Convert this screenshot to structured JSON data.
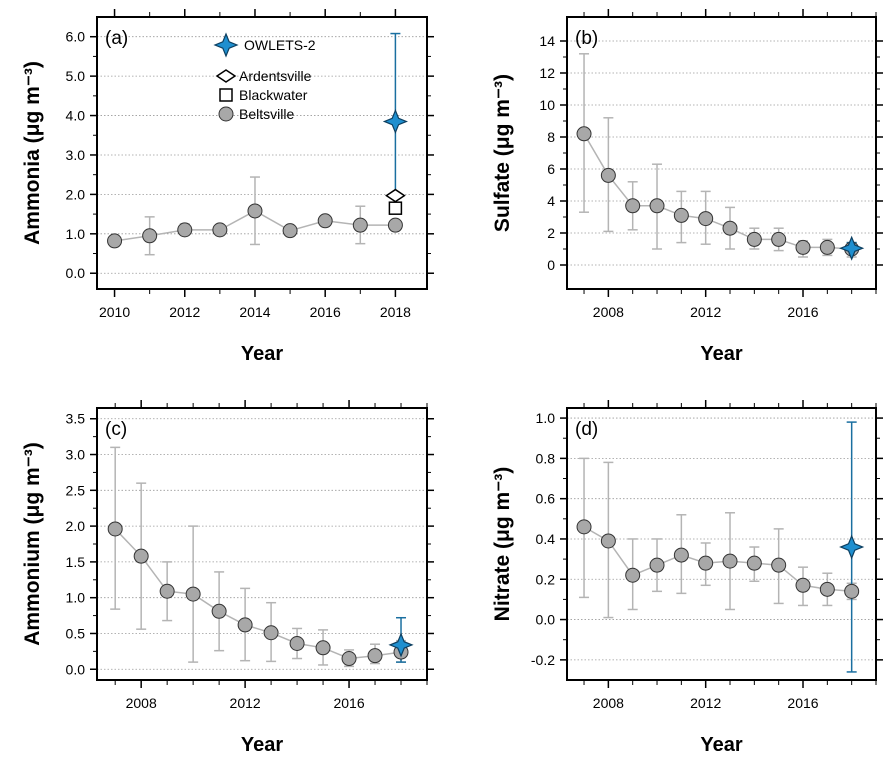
{
  "figure": {
    "panel_count": 4
  },
  "chart_data": [
    {
      "type": "line",
      "panel_label": "(a)",
      "xlabel": "Year",
      "ylabel": "Ammonia (μg m⁻³)",
      "xlim": [
        2009.5,
        2018.9
      ],
      "ylim": [
        -0.4,
        6.5
      ],
      "xticks": [
        2010,
        2012,
        2014,
        2016,
        2018
      ],
      "yticks": [
        0.0,
        1.0,
        2.0,
        3.0,
        4.0,
        5.0,
        6.0
      ],
      "ytick_labels": [
        "0.0",
        "1.0",
        "2.0",
        "3.0",
        "4.0",
        "5.0",
        "6.0"
      ],
      "legend": {
        "placement": "top-center",
        "entries": [
          "OWLETS-2",
          "Ardentsville",
          "Blackwater",
          "Beltsville"
        ]
      },
      "series": [
        {
          "name": "Beltsville",
          "marker": "circle",
          "x": [
            2010,
            2011,
            2012,
            2013,
            2014,
            2015,
            2016,
            2017,
            2018
          ],
          "y": [
            0.82,
            0.95,
            1.1,
            1.1,
            1.58,
            1.08,
            1.33,
            1.22,
            1.22
          ],
          "err_low": [
            null,
            0.47,
            0.97,
            null,
            0.73,
            null,
            null,
            0.75,
            null
          ],
          "err_high": [
            null,
            1.43,
            1.25,
            null,
            2.44,
            null,
            null,
            1.7,
            null
          ]
        },
        {
          "name": "OWLETS-2",
          "marker": "star",
          "x": [
            2018
          ],
          "y": [
            3.85
          ],
          "err_low": [
            1.62
          ],
          "err_high": [
            6.08
          ]
        },
        {
          "name": "Ardentsville",
          "marker": "diamond",
          "x": [
            2018
          ],
          "y": [
            1.97
          ]
        },
        {
          "name": "Blackwater",
          "marker": "square",
          "x": [
            2018
          ],
          "y": [
            1.65
          ]
        }
      ]
    },
    {
      "type": "line",
      "panel_label": "(b)",
      "xlabel": "Year",
      "ylabel": "Sulfate (μg m⁻³)",
      "xlim": [
        2006.3,
        2019.0
      ],
      "ylim": [
        -1.5,
        15.5
      ],
      "xticks": [
        2008,
        2012,
        2016
      ],
      "yticks": [
        0,
        2,
        4,
        6,
        8,
        10,
        12,
        14
      ],
      "ytick_labels": [
        "0",
        "2",
        "4",
        "6",
        "8",
        "10",
        "12",
        "14"
      ],
      "series": [
        {
          "name": "Beltsville",
          "marker": "circle",
          "x": [
            2007,
            2008,
            2009,
            2010,
            2011,
            2012,
            2013,
            2014,
            2015,
            2016,
            2017,
            2018
          ],
          "y": [
            8.2,
            5.6,
            3.7,
            3.7,
            3.1,
            2.9,
            2.3,
            1.6,
            1.6,
            1.1,
            1.1,
            1.0
          ],
          "err_low": [
            3.3,
            2.1,
            2.2,
            1.0,
            1.4,
            1.3,
            1.0,
            1.0,
            0.9,
            0.5,
            0.6,
            0.5
          ],
          "err_high": [
            13.2,
            9.2,
            5.2,
            6.3,
            4.6,
            4.6,
            3.6,
            2.3,
            2.3,
            1.5,
            1.6,
            1.4
          ]
        },
        {
          "name": "OWLETS-2",
          "marker": "star",
          "x": [
            2018
          ],
          "y": [
            1.05
          ],
          "err_low": [
            0.75
          ],
          "err_high": [
            1.4
          ]
        }
      ]
    },
    {
      "type": "line",
      "panel_label": "(c)",
      "xlabel": "Year",
      "ylabel": "Ammonium (μg m⁻³)",
      "xlim": [
        2006.3,
        2019.0
      ],
      "ylim": [
        -0.15,
        3.65
      ],
      "xticks": [
        2008,
        2012,
        2016
      ],
      "yticks": [
        0.0,
        0.5,
        1.0,
        1.5,
        2.0,
        2.5,
        3.0,
        3.5
      ],
      "ytick_labels": [
        "0.0",
        "0.5",
        "1.0",
        "1.5",
        "2.0",
        "2.5",
        "3.0",
        "3.5"
      ],
      "series": [
        {
          "name": "Beltsville",
          "marker": "circle",
          "x": [
            2007,
            2008,
            2009,
            2010,
            2011,
            2012,
            2013,
            2014,
            2015,
            2016,
            2017,
            2018
          ],
          "y": [
            1.96,
            1.58,
            1.09,
            1.05,
            0.81,
            0.62,
            0.51,
            0.36,
            0.3,
            0.15,
            0.19,
            0.24
          ],
          "err_low": [
            0.84,
            0.56,
            0.68,
            0.1,
            0.26,
            0.12,
            0.11,
            0.15,
            0.06,
            0.04,
            0.08,
            0.1
          ],
          "err_high": [
            3.1,
            2.6,
            1.5,
            2.0,
            1.36,
            1.13,
            0.93,
            0.57,
            0.55,
            0.27,
            0.35,
            0.4
          ]
        },
        {
          "name": "OWLETS-2",
          "marker": "star",
          "x": [
            2018
          ],
          "y": [
            0.34
          ],
          "err_low": [
            0.1
          ],
          "err_high": [
            0.72
          ]
        }
      ]
    },
    {
      "type": "line",
      "panel_label": "(d)",
      "xlabel": "Year",
      "ylabel": "Nitrate (μg m⁻³)",
      "xlim": [
        2006.3,
        2019.0
      ],
      "ylim": [
        -0.3,
        1.05
      ],
      "xticks": [
        2008,
        2012,
        2016
      ],
      "yticks": [
        -0.2,
        0.0,
        0.2,
        0.4,
        0.6,
        0.8,
        1.0
      ],
      "ytick_labels": [
        "-0.2",
        "0.0",
        "0.2",
        "0.4",
        "0.6",
        "0.8",
        "1.0"
      ],
      "series": [
        {
          "name": "Beltsville",
          "marker": "circle",
          "x": [
            2007,
            2008,
            2009,
            2010,
            2011,
            2012,
            2013,
            2014,
            2015,
            2016,
            2017,
            2018
          ],
          "y": [
            0.46,
            0.39,
            0.22,
            0.27,
            0.32,
            0.28,
            0.29,
            0.28,
            0.27,
            0.17,
            0.15,
            0.14
          ],
          "err_low": [
            0.11,
            0.01,
            0.05,
            0.14,
            0.13,
            0.17,
            0.05,
            0.19,
            0.08,
            0.07,
            0.07,
            0.1
          ],
          "err_high": [
            0.8,
            0.78,
            0.4,
            0.4,
            0.52,
            0.38,
            0.53,
            0.36,
            0.45,
            0.26,
            0.23,
            0.18
          ]
        },
        {
          "name": "OWLETS-2",
          "marker": "star",
          "x": [
            2018
          ],
          "y": [
            0.36
          ],
          "err_low": [
            -0.26
          ],
          "err_high": [
            0.98
          ]
        }
      ]
    }
  ],
  "colors": {
    "beltsville_fill": "#a8a8a8",
    "beltsville_line": "#b4b4b4",
    "owlets_fill": "#1f8fcf",
    "owlets_line": "#1a6fa0",
    "grid": "#9a9a9a",
    "axis": "#000000"
  }
}
